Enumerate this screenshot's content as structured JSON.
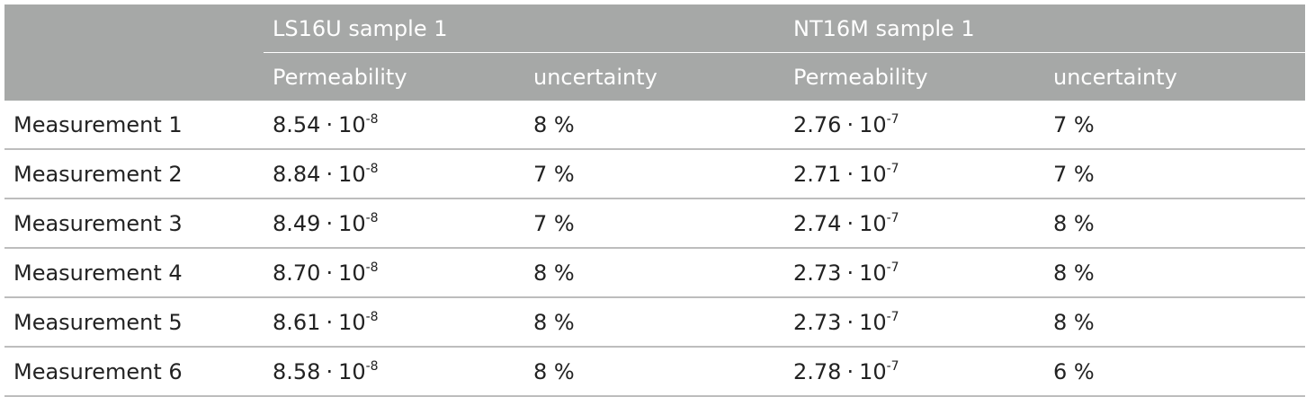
{
  "table": {
    "groups": [
      {
        "label": "LS16U sample 1"
      },
      {
        "label": "NT16M sample 1"
      }
    ],
    "subheaders": [
      "Permeability",
      "uncertainty",
      "Permeability",
      "uncertainty"
    ],
    "rows": [
      {
        "label": "Measurement 1",
        "ls_mantissa": "8.54",
        "ls_exp": "-8",
        "ls_unc": "8 %",
        "nt_mantissa": "2.76",
        "nt_exp": "-7",
        "nt_unc": "7 %"
      },
      {
        "label": "Measurement 2",
        "ls_mantissa": "8.84",
        "ls_exp": "-8",
        "ls_unc": "7 %",
        "nt_mantissa": "2.71",
        "nt_exp": "-7",
        "nt_unc": "7 %"
      },
      {
        "label": "Measurement 3",
        "ls_mantissa": "8.49",
        "ls_exp": "-8",
        "ls_unc": "7 %",
        "nt_mantissa": "2.74",
        "nt_exp": "-7",
        "nt_unc": "8 %"
      },
      {
        "label": "Measurement 4",
        "ls_mantissa": "8.70",
        "ls_exp": "-8",
        "ls_unc": "8 %",
        "nt_mantissa": "2.73",
        "nt_exp": "-7",
        "nt_unc": "8 %"
      },
      {
        "label": "Measurement 5",
        "ls_mantissa": "8.61",
        "ls_exp": "-8",
        "ls_unc": "8 %",
        "nt_mantissa": "2.73",
        "nt_exp": "-7",
        "nt_unc": "8 %"
      },
      {
        "label": "Measurement 6",
        "ls_mantissa": "8.58",
        "ls_exp": "-8",
        "ls_unc": "8 %",
        "nt_mantissa": "2.78",
        "nt_exp": "-7",
        "nt_unc": "6 %"
      }
    ],
    "multiply_sign": "·",
    "base": "10"
  },
  "colors": {
    "header_bg": "#a6a8a7",
    "header_text": "#ffffff",
    "body_text": "#222222",
    "row_rule": "#bdbdbd"
  }
}
